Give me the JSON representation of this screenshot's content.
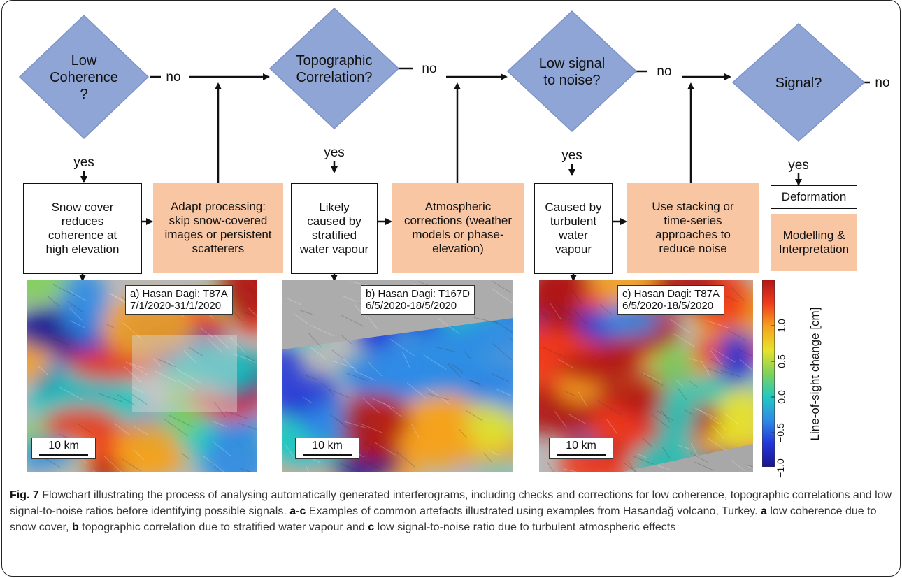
{
  "flowchart": {
    "decisions": [
      {
        "label": "Low\nCoherence\n?",
        "no": "no",
        "yes": "yes"
      },
      {
        "label": "Topographic\nCorrelation?",
        "no": "no",
        "yes": "yes"
      },
      {
        "label": "Low signal\nto noise?",
        "no": "no",
        "yes": "yes"
      },
      {
        "label": "Signal?",
        "no": "no",
        "yes": "yes"
      }
    ],
    "outcomes": [
      "Snow cover\nreduces\ncoherence at\nhigh elevation",
      "Likely\ncaused by\nstratified\nwater vapour",
      "Caused by\nturbulent\nwater\nvapour",
      "Deformation"
    ],
    "actions": [
      "Adapt processing:\nskip snow-covered\nimages or persistent\nscatterers",
      "Atmospheric\ncorrections (weather\nmodels or phase-\nelevation)",
      "Use stacking or\ntime-series\napproaches to\nreduce noise",
      "Modelling &\nInterpretation"
    ]
  },
  "panels": [
    {
      "label": "a) Hasan Dagi: T87A\n7/1/2020-31/1/2020",
      "scale": "10 km"
    },
    {
      "label": "b) Hasan Dagi: T167D\n6/5/2020-18/5/2020",
      "scale": "10 km"
    },
    {
      "label": "c) Hasan Dagi: T87A\n6/5/2020-18/5/2020",
      "scale": "10 km"
    }
  ],
  "colorbar": {
    "title": "Line-of-sight change [cm]",
    "ticks": [
      "1.0",
      "0.5",
      "0.0",
      "−0.5",
      "−1.0"
    ],
    "colors": [
      "#b01616",
      "#f03a1e",
      "#f5a21e",
      "#e8e22a",
      "#7fd25a",
      "#22c9c0",
      "#2f8be6",
      "#2236d8",
      "#1a1490"
    ]
  },
  "caption": {
    "fig": "Fig. 7",
    "text1": " Flowchart illustrating the process of analysing automatically generated interferograms, including checks and corrections for low coherence, topographic correlations and low signal-to-noise ratios before identifying possible signals. ",
    "ref_ac": "a-c",
    "text2": " Examples of common artefacts illustrated using examples from Hasandağ volcano, Turkey. ",
    "ref_a": "a",
    "text3": " low coherence due to snow cover, ",
    "ref_b": "b",
    "text4": " topographic correlation due to stratified water vapour and ",
    "ref_c": "c",
    "text5": " low signal-to-noise ratio due to turbulent atmospheric effects"
  }
}
